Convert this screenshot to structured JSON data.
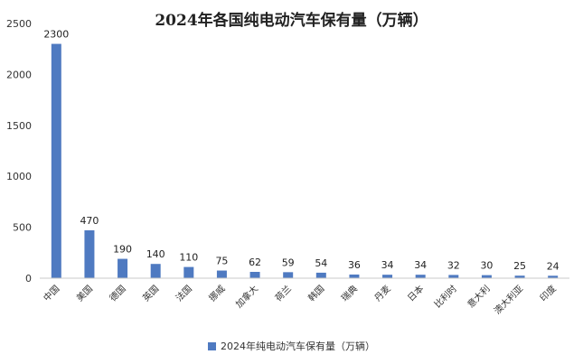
{
  "chart_data": {
    "type": "bar",
    "title": "2024年各国纯电动汽车保有量（万辆）",
    "categories": [
      "中国",
      "美国",
      "德国",
      "英国",
      "法国",
      "挪威",
      "加拿大",
      "荷兰",
      "韩国",
      "瑞典",
      "丹麦",
      "日本",
      "比利时",
      "意大利",
      "澳大利亚",
      "印度"
    ],
    "series": [
      {
        "name": "2024年纯电动汽车保有量（万辆）",
        "values": [
          2300,
          470,
          190,
          140,
          110,
          75,
          62,
          59,
          54,
          36,
          34,
          34,
          32,
          30,
          25,
          24
        ]
      }
    ],
    "y_ticks": [
      "0",
      "500",
      "1000",
      "1500",
      "2000",
      "2500"
    ],
    "ylim": [
      0,
      2500
    ],
    "grid": false,
    "legend_position": "bottom",
    "bar_color": "#4f7ac1"
  }
}
